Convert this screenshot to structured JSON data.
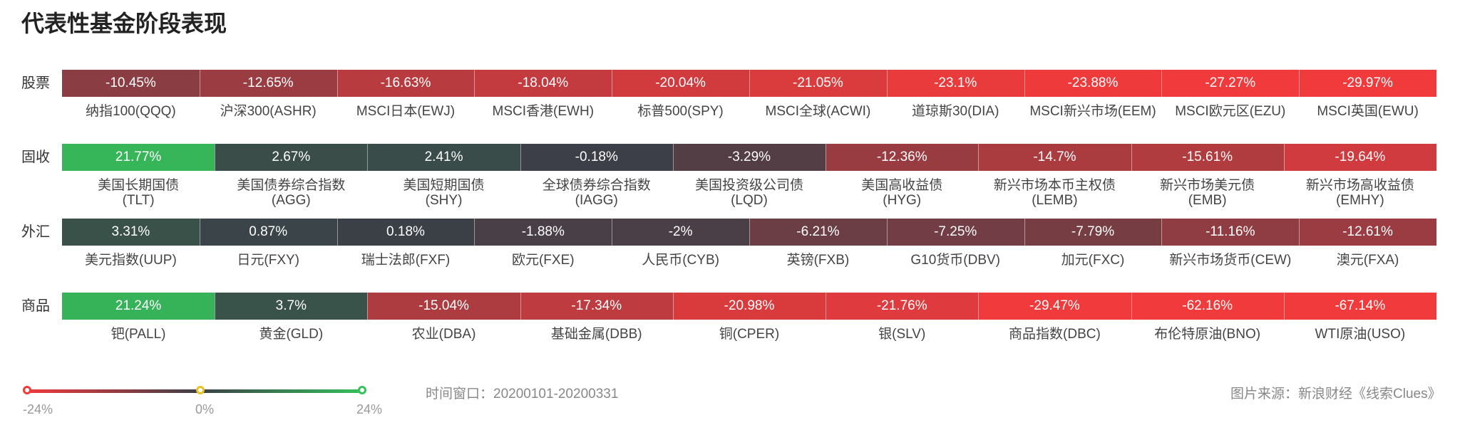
{
  "title": "代表性基金阶段表现",
  "chart_data": {
    "type": "heatmap",
    "rows": [
      {
        "label": "股票",
        "cells": [
          {
            "name": "纳指100(QQQ)",
            "value": -10.45,
            "display": "-10.45%"
          },
          {
            "name": "沪深300(ASHR)",
            "value": -12.65,
            "display": "-12.65%"
          },
          {
            "name": "MSCI日本(EWJ)",
            "value": -16.63,
            "display": "-16.63%"
          },
          {
            "name": "MSCI香港(EWH)",
            "value": -18.04,
            "display": "-18.04%"
          },
          {
            "name": "标普500(SPY)",
            "value": -20.04,
            "display": "-20.04%"
          },
          {
            "name": "MSCI全球(ACWI)",
            "value": -21.05,
            "display": "-21.05%"
          },
          {
            "name": "道琼斯30(DIA)",
            "value": -23.1,
            "display": "-23.1%"
          },
          {
            "name": "MSCI新兴市场(EEM)",
            "value": -23.88,
            "display": "-23.88%"
          },
          {
            "name": "MSCI欧元区(EZU)",
            "value": -27.27,
            "display": "-27.27%"
          },
          {
            "name": "MSCI英国(EWU)",
            "value": -29.97,
            "display": "-29.97%"
          }
        ]
      },
      {
        "label": "固收",
        "cells": [
          {
            "name": "美国长期国债\n(TLT)",
            "value": 21.77,
            "display": "21.77%"
          },
          {
            "name": "美国债券综合指数\n(AGG)",
            "value": 2.67,
            "display": "2.67%"
          },
          {
            "name": "美国短期国债\n(SHY)",
            "value": 2.41,
            "display": "2.41%"
          },
          {
            "name": "全球债券综合指数\n(IAGG)",
            "value": -0.18,
            "display": "-0.18%"
          },
          {
            "name": "美国投资级公司债\n(LQD)",
            "value": -3.29,
            "display": "-3.29%"
          },
          {
            "name": "美国高收益债\n(HYG)",
            "value": -12.36,
            "display": "-12.36%"
          },
          {
            "name": "新兴市场本币主权债\n(LEMB)",
            "value": -14.7,
            "display": "-14.7%"
          },
          {
            "name": "新兴市场美元债\n(EMB)",
            "value": -15.61,
            "display": "-15.61%"
          },
          {
            "name": "新兴市场高收益债\n(EMHY)",
            "value": -19.64,
            "display": "-19.64%"
          }
        ]
      },
      {
        "label": "外汇",
        "cells": [
          {
            "name": "美元指数(UUP)",
            "value": 3.31,
            "display": "3.31%"
          },
          {
            "name": "日元(FXY)",
            "value": 0.87,
            "display": "0.87%"
          },
          {
            "name": "瑞士法郎(FXF)",
            "value": 0.18,
            "display": "0.18%"
          },
          {
            "name": "欧元(FXE)",
            "value": -1.88,
            "display": "-1.88%"
          },
          {
            "name": "人民币(CYB)",
            "value": -2,
            "display": "-2%"
          },
          {
            "name": "英镑(FXB)",
            "value": -6.21,
            "display": "-6.21%"
          },
          {
            "name": "G10货币(DBV)",
            "value": -7.25,
            "display": "-7.25%"
          },
          {
            "name": "加元(FXC)",
            "value": -7.79,
            "display": "-7.79%"
          },
          {
            "name": "新兴市场货币(CEW)",
            "value": -11.16,
            "display": "-11.16%"
          },
          {
            "name": "澳元(FXA)",
            "value": -12.61,
            "display": "-12.61%"
          }
        ]
      },
      {
        "label": "商品",
        "cells": [
          {
            "name": "钯(PALL)",
            "value": 21.24,
            "display": "21.24%"
          },
          {
            "name": "黄金(GLD)",
            "value": 3.7,
            "display": "3.7%"
          },
          {
            "name": "农业(DBA)",
            "value": -15.04,
            "display": "-15.04%"
          },
          {
            "name": "基础金属(DBB)",
            "value": -17.34,
            "display": "-17.34%"
          },
          {
            "name": "铜(CPER)",
            "value": -20.98,
            "display": "-20.98%"
          },
          {
            "name": "银(SLV)",
            "value": -21.76,
            "display": "-21.76%"
          },
          {
            "name": "商品指数(DBC)",
            "value": -29.47,
            "display": "-29.47%"
          },
          {
            "name": "布伦特原油(BNO)",
            "value": -62.16,
            "display": "-62.16%"
          },
          {
            "name": "WTI原油(USO)",
            "value": -67.14,
            "display": "-67.14%"
          }
        ]
      }
    ],
    "color_scale": {
      "min": -24,
      "mid": 0,
      "max": 24,
      "min_label": "-24%",
      "mid_label": "0%",
      "max_label": "24%",
      "min_color": "#f03a3c",
      "mid_color": "#3b3f47",
      "max_color": "#35c15b"
    }
  },
  "footer": {
    "window": "时间窗口：20200101-20200331",
    "source": "图片来源：新浪财经《线索Clues》"
  }
}
